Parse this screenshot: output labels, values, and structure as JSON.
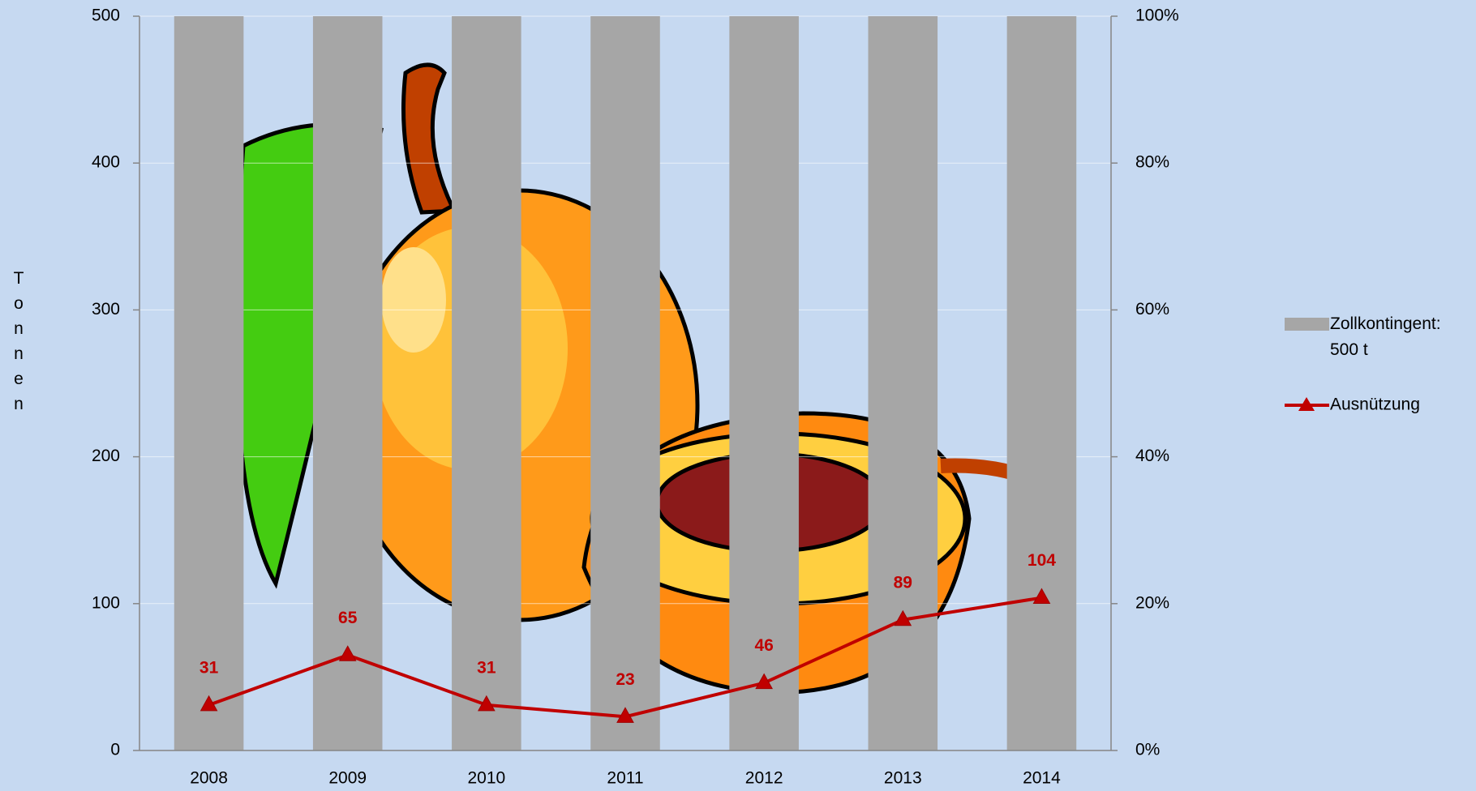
{
  "chart_data": {
    "type": "bar",
    "y_label": "Tonnen",
    "categories": [
      "2008",
      "2009",
      "2010",
      "2011",
      "2012",
      "2013",
      "2014"
    ],
    "series": [
      {
        "name": "Zollkontingent: 500 t",
        "type": "bar",
        "color": "#a6a6a6",
        "values": [
          500,
          500,
          500,
          500,
          500,
          500,
          500
        ]
      },
      {
        "name": "Ausnützung",
        "type": "line",
        "color": "#c00000",
        "values": [
          31,
          65,
          31,
          23,
          46,
          89,
          104
        ]
      }
    ],
    "ylim": [
      0,
      500
    ],
    "yticks": [
      0,
      100,
      200,
      300,
      400,
      500
    ],
    "y2lim": [
      0,
      100
    ],
    "y2ticks": [
      {
        "value": 0,
        "label": "0%"
      },
      {
        "value": 20,
        "label": "20%"
      },
      {
        "value": 40,
        "label": "40%"
      },
      {
        "value": 60,
        "label": "60%"
      },
      {
        "value": 80,
        "label": "80%"
      },
      {
        "value": 100,
        "label": "100%"
      }
    ],
    "grid": true,
    "legend": "right"
  }
}
